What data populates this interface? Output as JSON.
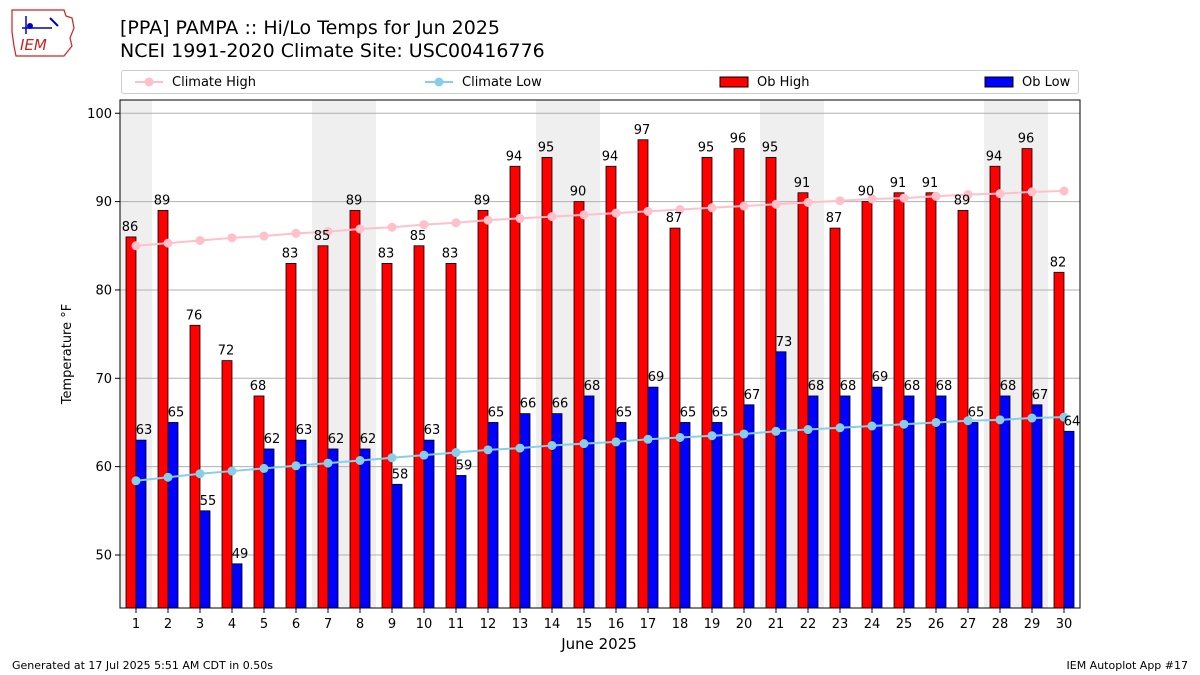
{
  "header": {
    "title_line1": "[PPA] PAMPA :: Hi/Lo Temps for Jun 2025",
    "title_line2": "NCEI 1991-2020 Climate Site: USC00416776",
    "logo_text": "IEM"
  },
  "footer": {
    "generated": "Generated at 17 Jul 2025 5:51 AM CDT in 0.50s",
    "app": "IEM Autoplot App #17"
  },
  "colors": {
    "ob_high": "#ff0000",
    "ob_low": "#0000ff",
    "climate_high": "#ffc0cb",
    "climate_low": "#87ceeb",
    "weekend_band": "#efefef",
    "grid": "#b0b0b0"
  },
  "chart_data": {
    "type": "bar",
    "xlabel": "June 2025",
    "ylabel": "Temperature °F",
    "ylim": [
      44,
      101.5
    ],
    "yticks": [
      50,
      60,
      70,
      80,
      90,
      100
    ],
    "grid": true,
    "legend_position": "top",
    "categories": [
      "1",
      "2",
      "3",
      "4",
      "5",
      "6",
      "7",
      "8",
      "9",
      "10",
      "11",
      "12",
      "13",
      "14",
      "15",
      "16",
      "17",
      "18",
      "19",
      "20",
      "21",
      "22",
      "23",
      "24",
      "25",
      "26",
      "27",
      "28",
      "29",
      "30"
    ],
    "weekend_days": [
      1,
      7,
      8,
      14,
      15,
      21,
      22,
      28,
      29
    ],
    "series": [
      {
        "name": "Ob High",
        "kind": "bar",
        "color": "#ff0000",
        "values": [
          86,
          89,
          76,
          72,
          68,
          83,
          85,
          89,
          83,
          85,
          83,
          89,
          94,
          95,
          90,
          94,
          97,
          87,
          95,
          96,
          95,
          91,
          87,
          90,
          91,
          91,
          89,
          94,
          96,
          82
        ]
      },
      {
        "name": "Ob Low",
        "kind": "bar",
        "color": "#0000ff",
        "values": [
          63,
          65,
          55,
          49,
          62,
          63,
          62,
          62,
          58,
          63,
          59,
          65,
          66,
          66,
          68,
          65,
          69,
          65,
          65,
          67,
          73,
          68,
          68,
          69,
          68,
          68,
          65,
          68,
          67,
          64
        ]
      },
      {
        "name": "Climate High",
        "kind": "line",
        "color": "#ffc0cb",
        "values": [
          85.0,
          85.3,
          85.6,
          85.9,
          86.1,
          86.4,
          86.6,
          86.9,
          87.1,
          87.4,
          87.6,
          87.9,
          88.1,
          88.3,
          88.5,
          88.7,
          88.9,
          89.1,
          89.3,
          89.5,
          89.7,
          89.9,
          90.1,
          90.3,
          90.4,
          90.6,
          90.8,
          90.9,
          91.1,
          91.2
        ]
      },
      {
        "name": "Climate Low",
        "kind": "line",
        "color": "#87ceeb",
        "values": [
          58.4,
          58.8,
          59.2,
          59.5,
          59.8,
          60.1,
          60.4,
          60.7,
          61.0,
          61.3,
          61.6,
          61.9,
          62.1,
          62.4,
          62.6,
          62.8,
          63.1,
          63.3,
          63.5,
          63.7,
          64.0,
          64.2,
          64.4,
          64.6,
          64.8,
          65.0,
          65.2,
          65.3,
          65.5,
          65.6
        ]
      }
    ]
  }
}
